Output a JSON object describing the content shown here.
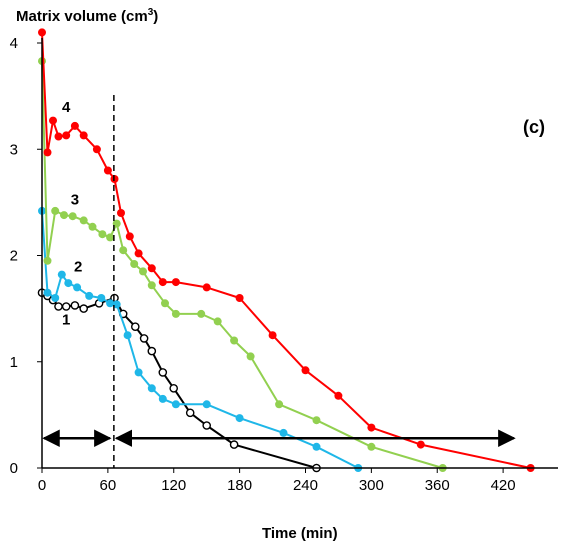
{
  "chart_data": {
    "type": "line",
    "title": "",
    "ylabel_main": "Matrix volume (cm",
    "ylabel_sup": "3",
    "ylabel_close": ")",
    "xlabel": "Time (min)",
    "panel_label": "(c)",
    "xlim": [
      0,
      470
    ],
    "ylim": [
      0,
      4
    ],
    "x_ticks": [
      "0",
      "60",
      "120",
      "180",
      "240",
      "300",
      "360",
      "420"
    ],
    "x_tick_values": [
      0,
      60,
      120,
      180,
      240,
      300,
      360,
      420
    ],
    "y_ticks": [
      "0",
      "1",
      "2",
      "3",
      "4"
    ],
    "y_tick_values": [
      0,
      1,
      2,
      3,
      4
    ],
    "grid": false,
    "divider_x": 60,
    "arrows": [
      {
        "from": 0,
        "to": 60,
        "y": 0.28
      },
      {
        "from": 66,
        "to": 428,
        "y": 0.28
      }
    ],
    "series": [
      {
        "name": "1",
        "color": "#000000",
        "marker": "open-circle",
        "label_at": [
          22,
          1.35
        ],
        "x": [
          0,
          5,
          10,
          15,
          22,
          30,
          38,
          52,
          66,
          74,
          85,
          93,
          100,
          110,
          120,
          135,
          150,
          175,
          250
        ],
        "y": [
          1.65,
          1.62,
          1.58,
          1.52,
          1.52,
          1.53,
          1.5,
          1.55,
          1.6,
          1.45,
          1.33,
          1.22,
          1.1,
          0.9,
          0.75,
          0.52,
          0.4,
          0.22,
          0.0
        ]
      },
      {
        "name": "2",
        "color": "#1FB7E8",
        "marker": "filled-circle",
        "label_at": [
          33,
          1.85
        ],
        "x": [
          0,
          5,
          12,
          18,
          24,
          32,
          43,
          54,
          62,
          68,
          78,
          88,
          100,
          110,
          122,
          150,
          180,
          220,
          250,
          288
        ],
        "y": [
          2.42,
          1.65,
          1.6,
          1.82,
          1.74,
          1.7,
          1.62,
          1.6,
          1.55,
          1.54,
          1.25,
          0.9,
          0.75,
          0.65,
          0.6,
          0.6,
          0.47,
          0.33,
          0.2,
          0.0
        ]
      },
      {
        "name": "3",
        "color": "#92D050",
        "marker": "filled-circle",
        "label_at": [
          30,
          2.48
        ],
        "x": [
          0,
          5,
          12,
          20,
          28,
          38,
          46,
          55,
          62,
          68,
          74,
          84,
          92,
          100,
          112,
          122,
          145,
          160,
          175,
          190,
          216,
          250,
          300,
          365
        ],
        "y": [
          3.83,
          1.95,
          2.42,
          2.38,
          2.37,
          2.33,
          2.27,
          2.2,
          2.17,
          2.3,
          2.05,
          1.92,
          1.85,
          1.72,
          1.55,
          1.45,
          1.45,
          1.38,
          1.2,
          1.05,
          0.6,
          0.45,
          0.2,
          0.0
        ]
      },
      {
        "name": "4",
        "color": "#FF0000",
        "marker": "filled-circle",
        "label_at": [
          22,
          3.35
        ],
        "x": [
          0,
          5,
          10,
          15,
          22,
          30,
          38,
          50,
          60,
          66,
          72,
          80,
          88,
          100,
          110,
          122,
          150,
          180,
          210,
          240,
          270,
          300,
          345,
          445
        ],
        "y": [
          4.1,
          2.97,
          3.27,
          3.12,
          3.13,
          3.22,
          3.13,
          3.0,
          2.8,
          2.72,
          2.4,
          2.18,
          2.02,
          1.88,
          1.75,
          1.75,
          1.7,
          1.6,
          1.25,
          0.92,
          0.68,
          0.38,
          0.22,
          0.0
        ]
      }
    ]
  }
}
